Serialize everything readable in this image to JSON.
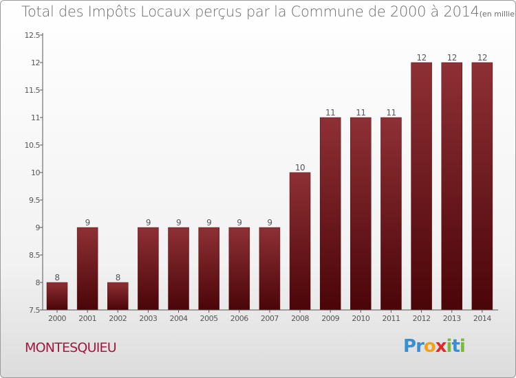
{
  "title": "Total des Impôts Locaux perçus par la Commune de 2000 à 2014",
  "title_unit": "(en milliers d'€)",
  "commune": "MONTESQUIEU",
  "logo": {
    "letters": [
      "P",
      "r",
      "o",
      "x",
      "i",
      "t",
      "i"
    ],
    "colors": [
      "#3a8fd0",
      "#3a8fd0",
      "#f0a21b",
      "#e02a2a",
      "#7ab93a",
      "#3a8fd0",
      "#7ab93a"
    ]
  },
  "chart_data": {
    "type": "bar",
    "categories": [
      "2000",
      "2001",
      "2002",
      "2003",
      "2004",
      "2005",
      "2006",
      "2007",
      "2008",
      "2009",
      "2010",
      "2011",
      "2012",
      "2013",
      "2014"
    ],
    "values": [
      8,
      9,
      8,
      9,
      9,
      9,
      9,
      9,
      10,
      11,
      11,
      11,
      12,
      12,
      12
    ],
    "data_labels": [
      "8",
      "9",
      "8",
      "9",
      "9",
      "9",
      "9",
      "9",
      "10",
      "11",
      "11",
      "11",
      "12",
      "12",
      "12"
    ],
    "y_ticks": [
      "7.5",
      "8",
      "8.5",
      "9",
      "9.5",
      "10",
      "10.5",
      "11",
      "11.5",
      "12",
      "12.5"
    ],
    "ylim": [
      7.5,
      12.5
    ],
    "grid": false,
    "bar_color": "#7a1a1f"
  }
}
